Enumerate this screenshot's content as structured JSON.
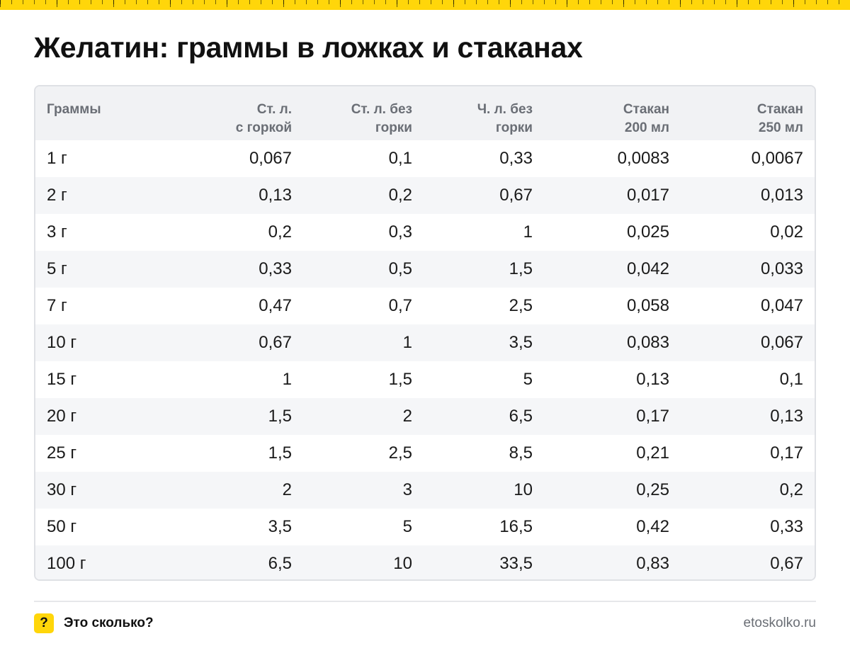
{
  "title": "Желатин: граммы в ложках и стаканах",
  "table": {
    "headers": [
      [
        "Граммы",
        ""
      ],
      [
        "Ст. л.",
        "с горкой"
      ],
      [
        "Ст. л. без",
        "горки"
      ],
      [
        "Ч. л. без",
        "горки"
      ],
      [
        "Стакан",
        "200 мл"
      ],
      [
        "Стакан",
        "250 мл"
      ]
    ],
    "rows": [
      [
        "1 г",
        "0,067",
        "0,1",
        "0,33",
        "0,0083",
        "0,0067"
      ],
      [
        "2 г",
        "0,13",
        "0,2",
        "0,67",
        "0,017",
        "0,013"
      ],
      [
        "3 г",
        "0,2",
        "0,3",
        "1",
        "0,025",
        "0,02"
      ],
      [
        "5 г",
        "0,33",
        "0,5",
        "1,5",
        "0,042",
        "0,033"
      ],
      [
        "7 г",
        "0,47",
        "0,7",
        "2,5",
        "0,058",
        "0,047"
      ],
      [
        "10 г",
        "0,67",
        "1",
        "3,5",
        "0,083",
        "0,067"
      ],
      [
        "15 г",
        "1",
        "1,5",
        "5",
        "0,13",
        "0,1"
      ],
      [
        "20 г",
        "1,5",
        "2",
        "6,5",
        "0,17",
        "0,13"
      ],
      [
        "25 г",
        "1,5",
        "2,5",
        "8,5",
        "0,21",
        "0,17"
      ],
      [
        "30 г",
        "2",
        "3",
        "10",
        "0,25",
        "0,2"
      ],
      [
        "50 г",
        "3,5",
        "5",
        "16,5",
        "0,42",
        "0,33"
      ],
      [
        "100 г",
        "6,5",
        "10",
        "33,5",
        "0,83",
        "0,67"
      ]
    ]
  },
  "footer": {
    "icon_symbol": "?",
    "brand_name": "Это сколько?",
    "site": "etoskolko.ru"
  },
  "colors": {
    "accent": "#ffd60a",
    "header_bg": "#f1f2f4",
    "stripe_bg": "#f5f6f8"
  }
}
